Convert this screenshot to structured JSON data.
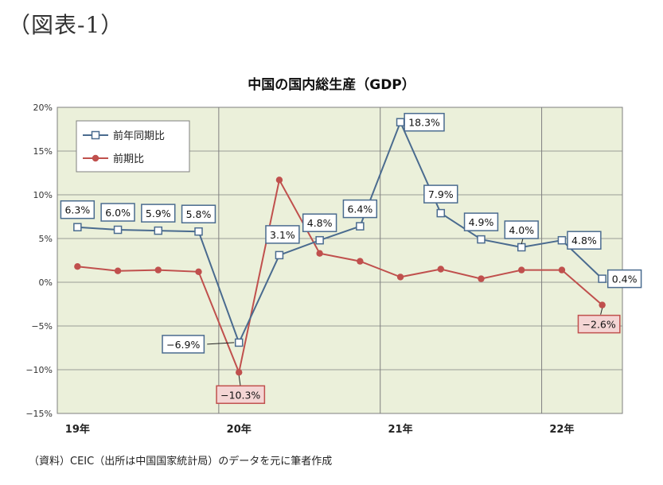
{
  "figure_label": "（図表-1）",
  "source_note": "（資料）CEIC（出所は中国国家統計局）のデータを元に筆者作成",
  "colors": {
    "plot_bg": "#ebf0da",
    "grid": "#7f7f7f",
    "yoy": "#4a6b8f",
    "qoq": "#c0504d",
    "yoy_label_border": "#4a6b8f",
    "qoq_label_border": "#c0504d",
    "qoq_label_fill": "#f4d5d4"
  },
  "chart_data": {
    "type": "line",
    "title": "中国の国内総生産（GDP）",
    "xlabel": "",
    "ylabel": "",
    "ylim": [
      -15,
      20
    ],
    "yticks": [
      -15,
      -10,
      -5,
      0,
      5,
      10,
      15,
      20
    ],
    "ytick_labels": [
      "−15%",
      "−10%",
      "−5%",
      "0%",
      "5%",
      "10%",
      "15%",
      "20%"
    ],
    "year_labels": [
      "19年",
      "20年",
      "21年",
      "22年"
    ],
    "year_label_quarter_index": [
      0,
      4,
      8,
      12
    ],
    "year_boundary_after_index": [
      3.5,
      7.5,
      11.5
    ],
    "grid": true,
    "legend_position": "top-left",
    "x": [
      "2019Q1",
      "2019Q2",
      "2019Q3",
      "2019Q4",
      "2020Q1",
      "2020Q2",
      "2020Q3",
      "2020Q4",
      "2021Q1",
      "2021Q2",
      "2021Q3",
      "2021Q4",
      "2022Q1",
      "2022Q2"
    ],
    "series": [
      {
        "name": "前年同期比",
        "marker": "square",
        "values": [
          6.3,
          6.0,
          5.9,
          5.8,
          -6.9,
          3.1,
          4.8,
          6.4,
          18.3,
          7.9,
          4.9,
          4.0,
          4.8,
          0.4
        ],
        "data_labels": [
          "6.3%",
          "6.0%",
          "5.9%",
          "5.8%",
          "−6.9%",
          "3.1%",
          "4.8%",
          "6.4%",
          "18.3%",
          "7.9%",
          "4.9%",
          "4.0%",
          "4.8%",
          "0.4%"
        ]
      },
      {
        "name": "前期比",
        "marker": "circle",
        "values": [
          1.8,
          1.3,
          1.4,
          1.2,
          -10.3,
          11.7,
          3.3,
          2.4,
          0.6,
          1.5,
          0.4,
          1.4,
          1.4,
          -2.6
        ],
        "data_labels": {
          "4": "−10.3%",
          "13": "−2.6%"
        }
      }
    ]
  }
}
